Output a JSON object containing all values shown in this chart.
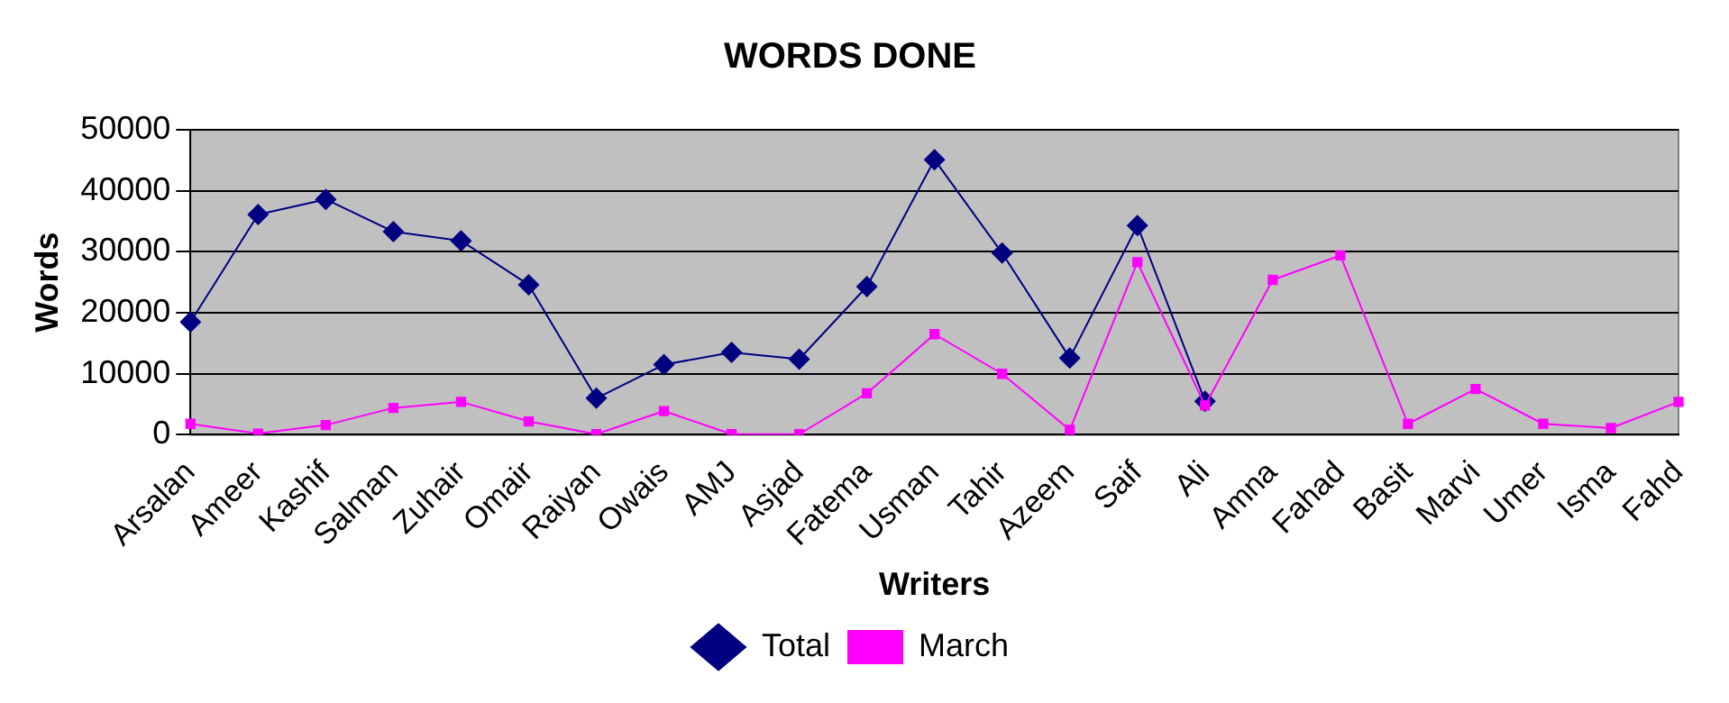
{
  "chart_data": {
    "type": "line",
    "title": "WORDS DONE",
    "xlabel": "Writers",
    "ylabel": "Words",
    "categories": [
      "Arsalan",
      "Ameer",
      "Kashif",
      "Salman",
      "Zuhair",
      "Omair",
      "Raiyan",
      "Owais",
      "AMJ",
      "Asjad",
      "Fatema",
      "Usman",
      "Tahir",
      "Azeem",
      "Saif",
      "Ali",
      "Amna",
      "Fahad",
      "Basit",
      "Marvi",
      "Umer",
      "Isma",
      "Fahd"
    ],
    "series": [
      {
        "name": "Total",
        "color": "#000080",
        "marker": "diamond",
        "values": [
          18500,
          36100,
          38600,
          33300,
          31800,
          24600,
          6000,
          11500,
          13500,
          12400,
          24300,
          45100,
          29800,
          12600,
          34300,
          5500,
          null,
          null,
          null,
          null,
          null,
          null,
          null
        ]
      },
      {
        "name": "March",
        "color": "#ff00ff",
        "marker": "square",
        "values": [
          1800,
          200,
          1600,
          4400,
          5400,
          2200,
          100,
          3900,
          100,
          100,
          6800,
          16500,
          10000,
          800,
          28300,
          4800,
          25400,
          29400,
          1800,
          7500,
          1800,
          1100,
          5400
        ]
      }
    ],
    "ylim": [
      0,
      50000
    ],
    "yticks": [
      0,
      10000,
      20000,
      30000,
      40000,
      50000
    ],
    "grid": "y",
    "legend": "bottom",
    "line_style": "solid"
  }
}
